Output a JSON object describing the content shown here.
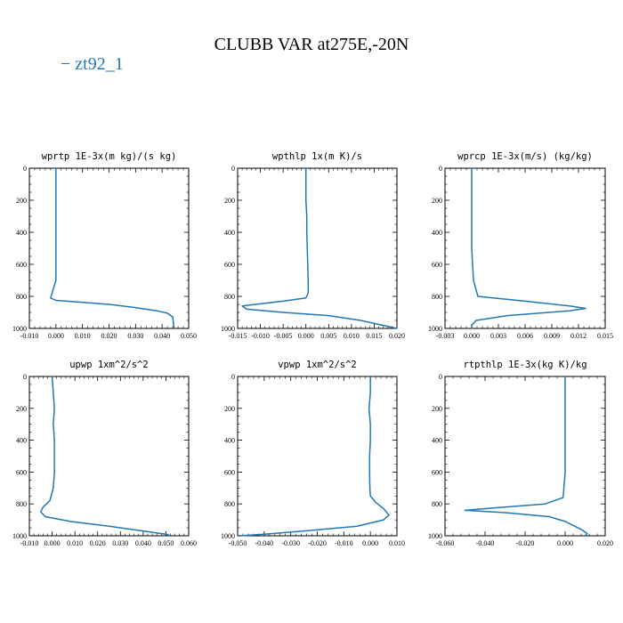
{
  "figure": {
    "title": "CLUBB VAR at275E,-20N",
    "legend": {
      "label": "zt92_1",
      "color": "#1f77b4"
    }
  },
  "chart_data": [
    {
      "type": "line",
      "title": "wprtp  1E-3x(m kg)/(s kg)",
      "xlim": [
        -0.01,
        0.05
      ],
      "xticks": [
        "-0.010",
        "0.000",
        "0.010",
        "0.020",
        "0.030",
        "0.040",
        "0.050"
      ],
      "ylim": [
        1000,
        0
      ],
      "yticks": [
        "0",
        "200",
        "400",
        "600",
        "800",
        "1000"
      ],
      "series": [
        {
          "color": "#1f77b4",
          "x": [
            0.0,
            0.0,
            0.0,
            0.0,
            0.0,
            0.0,
            0.0,
            0.0,
            -0.002,
            0.0,
            0.008,
            0.02,
            0.03,
            0.038,
            0.042,
            0.044,
            0.0445
          ],
          "y": [
            0,
            100,
            200,
            300,
            400,
            500,
            600,
            700,
            810,
            825,
            835,
            850,
            870,
            890,
            905,
            930,
            1000
          ]
        }
      ]
    },
    {
      "type": "line",
      "title": "wpthlp  1x(m K)/s",
      "xlim": [
        -0.015,
        0.02
      ],
      "xticks": [
        "-0.015",
        "-0.010",
        "-0.005",
        "0.000",
        "0.005",
        "0.010",
        "0.015",
        "0.020"
      ],
      "ylim": [
        1000,
        0
      ],
      "yticks": [
        "0",
        "200",
        "400",
        "600",
        "800",
        "1000"
      ],
      "series": [
        {
          "color": "#1f77b4",
          "x": [
            0.0,
            0.0,
            0.0,
            0.0002,
            0.0002,
            0.0003,
            0.0004,
            0.0005,
            0.0005,
            0.0,
            -0.005,
            -0.014,
            -0.013,
            -0.005,
            0.005,
            0.012,
            0.02
          ],
          "y": [
            0,
            100,
            200,
            300,
            400,
            500,
            600,
            700,
            780,
            810,
            830,
            860,
            880,
            900,
            920,
            950,
            1000
          ]
        }
      ]
    },
    {
      "type": "line",
      "title": "wprcp  1E-3x(m/s) (kg/kg)",
      "xlim": [
        -0.003,
        0.015
      ],
      "xticks": [
        "-0.003",
        "0.000",
        "0.003",
        "0.006",
        "0.009",
        "0.012",
        "0.015"
      ],
      "ylim": [
        1000,
        0
      ],
      "yticks": [
        "0",
        "200",
        "400",
        "600",
        "800",
        "1000"
      ],
      "series": [
        {
          "color": "#1f77b4",
          "x": [
            0.0,
            0.0,
            0.0,
            0.0,
            0.0,
            0.0,
            0.0001,
            0.0002,
            0.0007,
            0.006,
            0.011,
            0.0128,
            0.011,
            0.004,
            0.0005,
            0.0,
            0.0
          ],
          "y": [
            0,
            100,
            200,
            300,
            400,
            500,
            600,
            700,
            800,
            830,
            860,
            875,
            890,
            920,
            950,
            980,
            1000
          ]
        }
      ]
    },
    {
      "type": "line",
      "title": "upwp  1xm^2/s^2",
      "xlim": [
        -0.01,
        0.06
      ],
      "xticks": [
        "-0.010",
        "0.000",
        "0.010",
        "0.020",
        "0.030",
        "0.040",
        "0.050",
        "0.060"
      ],
      "ylim": [
        1000,
        0
      ],
      "yticks": [
        "0",
        "200",
        "400",
        "600",
        "800",
        "1000"
      ],
      "series": [
        {
          "color": "#1f77b4",
          "x": [
            0.0,
            0.0005,
            0.001,
            0.0005,
            0.001,
            0.001,
            0.001,
            0.0005,
            -0.001,
            -0.004,
            -0.005,
            -0.003,
            0.008,
            0.025,
            0.04,
            0.05,
            0.052
          ],
          "y": [
            0,
            100,
            200,
            300,
            400,
            500,
            600,
            700,
            780,
            820,
            850,
            880,
            910,
            940,
            970,
            990,
            1000
          ]
        }
      ]
    },
    {
      "type": "line",
      "title": "vpwp  1xm^2/s^2",
      "xlim": [
        -0.05,
        0.01
      ],
      "xticks": [
        "-0.050",
        "-0.040",
        "-0.030",
        "-0.020",
        "-0.010",
        "0.000",
        "0.010"
      ],
      "ylim": [
        1000,
        0
      ],
      "yticks": [
        "0",
        "200",
        "400",
        "600",
        "800",
        "1000"
      ],
      "series": [
        {
          "color": "#1f77b4",
          "x": [
            0.0,
            0.0,
            -0.0005,
            0.0,
            0.0,
            -0.0003,
            -0.0003,
            -0.0002,
            0.0,
            0.002,
            0.005,
            0.007,
            0.005,
            -0.005,
            -0.025,
            -0.04,
            -0.049
          ],
          "y": [
            0,
            100,
            200,
            300,
            400,
            500,
            600,
            700,
            750,
            790,
            830,
            870,
            900,
            940,
            970,
            990,
            1000
          ]
        }
      ]
    },
    {
      "type": "line",
      "title": "rtpthlp  1E-3x(kg K)/kg",
      "xlim": [
        -0.06,
        0.02
      ],
      "xticks": [
        "-0.060",
        "-0.040",
        "-0.020",
        "0.000",
        "0.020"
      ],
      "ylim": [
        1000,
        0
      ],
      "yticks": [
        "0",
        "200",
        "400",
        "600",
        "800",
        "1000"
      ],
      "series": [
        {
          "color": "#1f77b4",
          "x": [
            0.0,
            0.0,
            0.0,
            0.0,
            0.0,
            0.0,
            0.0,
            -0.001,
            -0.01,
            -0.03,
            -0.05,
            -0.03,
            -0.008,
            0.0,
            0.008,
            0.011,
            0.01
          ],
          "y": [
            0,
            100,
            200,
            300,
            400,
            500,
            600,
            760,
            800,
            820,
            840,
            855,
            880,
            910,
            960,
            985,
            1000
          ]
        }
      ]
    }
  ]
}
